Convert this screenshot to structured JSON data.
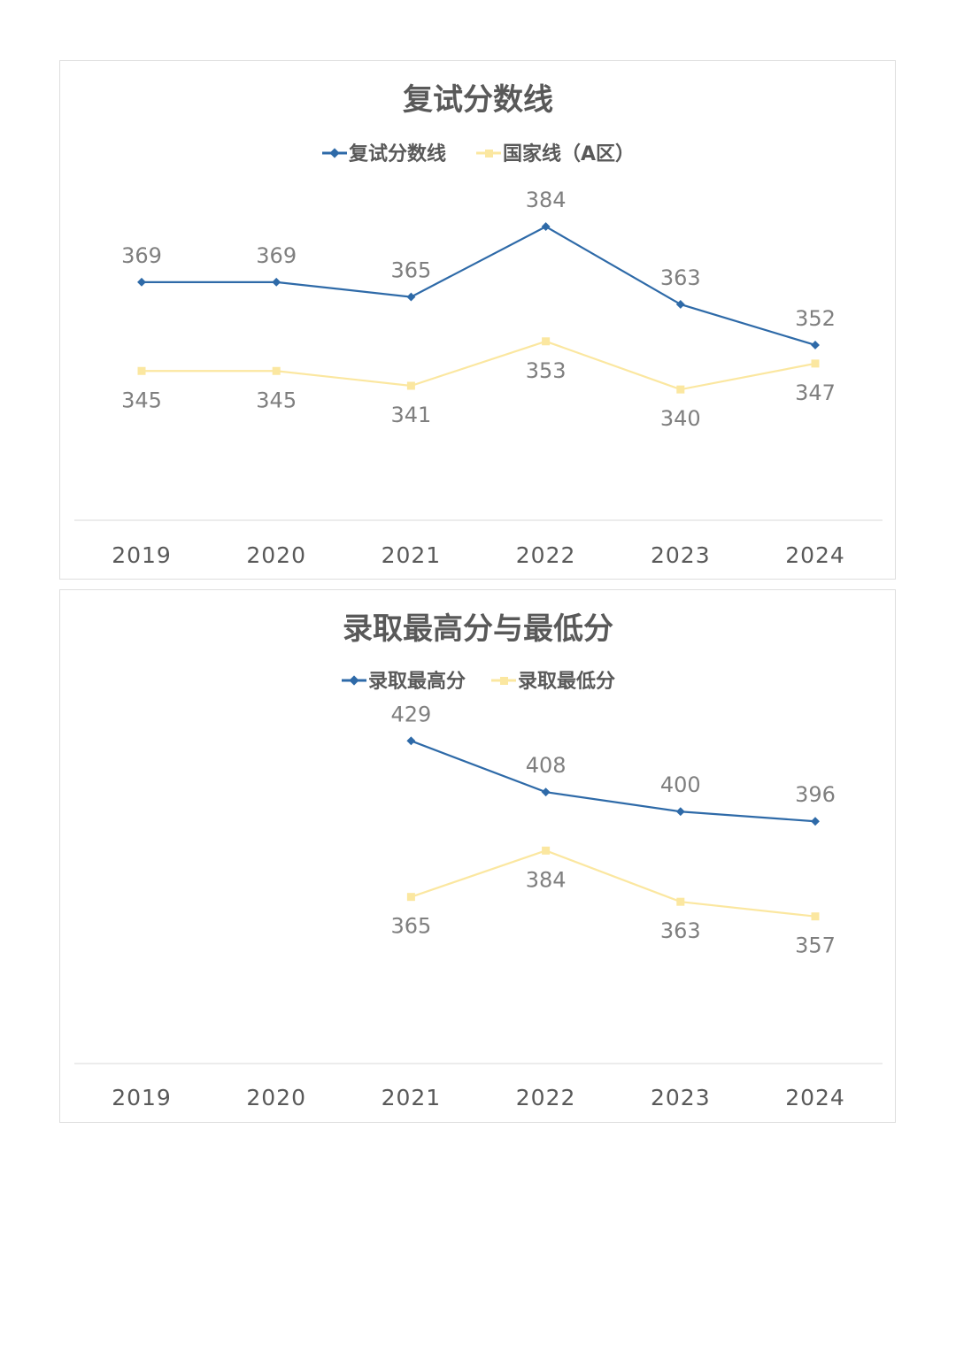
{
  "colors": {
    "series_blue": "#2e6aa8",
    "series_yellow": "#fbe7a0",
    "axis": "#d9d9d9",
    "text": "#595959",
    "label": "#7f7f7f"
  },
  "chart_data": [
    {
      "type": "line",
      "title": "复试分数线",
      "categories": [
        "2019",
        "2020",
        "2021",
        "2022",
        "2023",
        "2024"
      ],
      "series": [
        {
          "name": "复试分数线",
          "values": [
            369,
            369,
            365,
            384,
            363,
            352
          ],
          "color": "#2e6aa8",
          "marker": "diamond"
        },
        {
          "name": "国家线（A区）",
          "values": [
            345,
            345,
            341,
            353,
            340,
            347
          ],
          "color": "#fbe7a0",
          "marker": "square"
        }
      ],
      "ylim": [
        300,
        400
      ],
      "legend": "top",
      "grid": false
    },
    {
      "type": "line",
      "title": "录取最高分与最低分",
      "categories": [
        "2019",
        "2020",
        "2021",
        "2022",
        "2023",
        "2024"
      ],
      "series": [
        {
          "name": "录取最高分",
          "values": [
            null,
            null,
            429,
            408,
            400,
            396
          ],
          "color": "#2e6aa8",
          "marker": "diamond"
        },
        {
          "name": "录取最低分",
          "values": [
            null,
            null,
            365,
            384,
            363,
            357
          ],
          "color": "#fbe7a0",
          "marker": "square"
        }
      ],
      "ylim": [
        300,
        450
      ],
      "legend": "top",
      "grid": false
    }
  ]
}
